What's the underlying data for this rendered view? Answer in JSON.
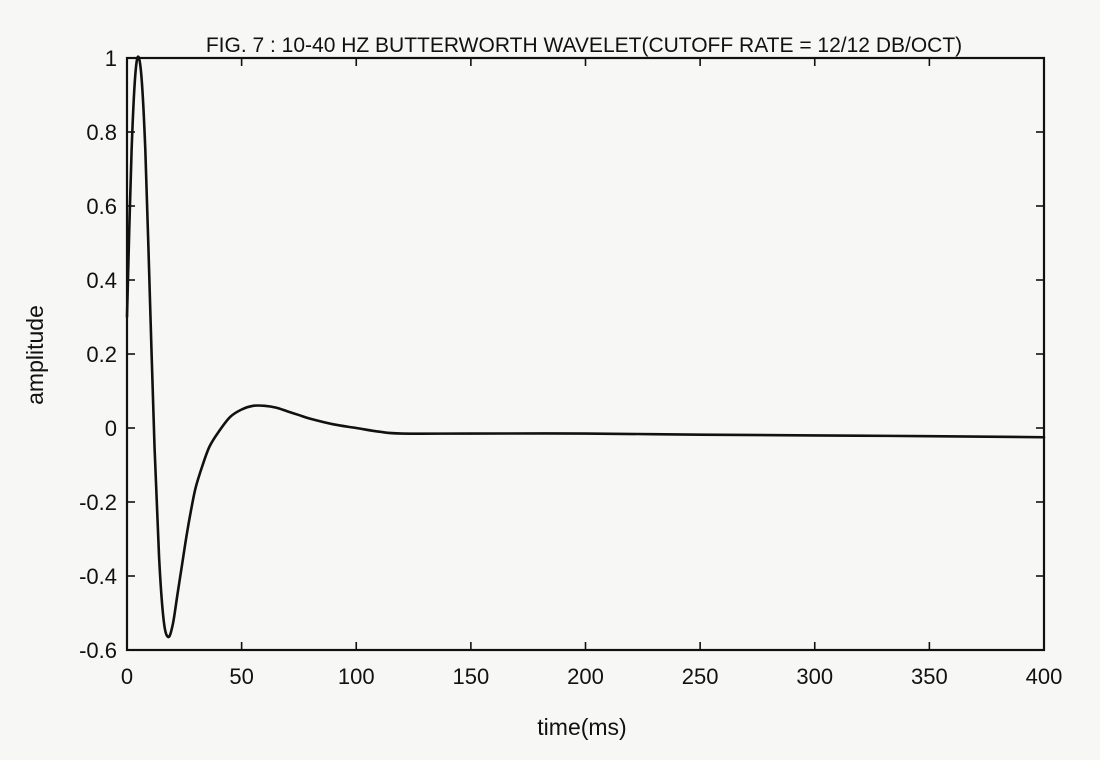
{
  "chart_data": {
    "type": "line",
    "title": "FIG. 7 : 10-40 HZ BUTTERWORTH WAVELET(CUTOFF RATE = 12/12 DB/OCT)",
    "xlabel": "time(ms)",
    "ylabel": "amplitude",
    "xlim": [
      0,
      400
    ],
    "ylim": [
      -0.6,
      1
    ],
    "x_ticks": [
      0,
      50,
      100,
      150,
      200,
      250,
      300,
      350,
      400
    ],
    "y_ticks": [
      -0.6,
      -0.4,
      -0.2,
      0,
      0.2,
      0.4,
      0.6,
      0.8,
      1
    ],
    "x_tick_labels": [
      "0",
      "50",
      "100",
      "150",
      "200",
      "250",
      "300",
      "350",
      "400"
    ],
    "y_tick_labels": [
      "-0.6",
      "-0.4",
      "-0.2",
      "0",
      "0.2",
      "0.4",
      "0.6",
      "0.8",
      "1"
    ],
    "grid": false,
    "colors": {
      "line": "#111111",
      "background": "#f7f7f5"
    },
    "series": [
      {
        "x": [
          0,
          2,
          4,
          6,
          8,
          10,
          12,
          14,
          16,
          18,
          20,
          22,
          24,
          26,
          28,
          30,
          33,
          36,
          40,
          45,
          50,
          55,
          60,
          65,
          70,
          75,
          80,
          90,
          100,
          110,
          120,
          150,
          200,
          250,
          300,
          350,
          400
        ],
        "values": [
          0.3,
          0.75,
          0.98,
          0.97,
          0.75,
          0.35,
          -0.05,
          -0.35,
          -0.52,
          -0.565,
          -0.53,
          -0.45,
          -0.37,
          -0.29,
          -0.22,
          -0.16,
          -0.1,
          -0.05,
          -0.01,
          0.03,
          0.05,
          0.06,
          0.06,
          0.055,
          0.045,
          0.035,
          0.025,
          0.01,
          0.0,
          -0.01,
          -0.015,
          -0.015,
          -0.015,
          -0.018,
          -0.02,
          -0.022,
          -0.025
        ]
      }
    ]
  }
}
